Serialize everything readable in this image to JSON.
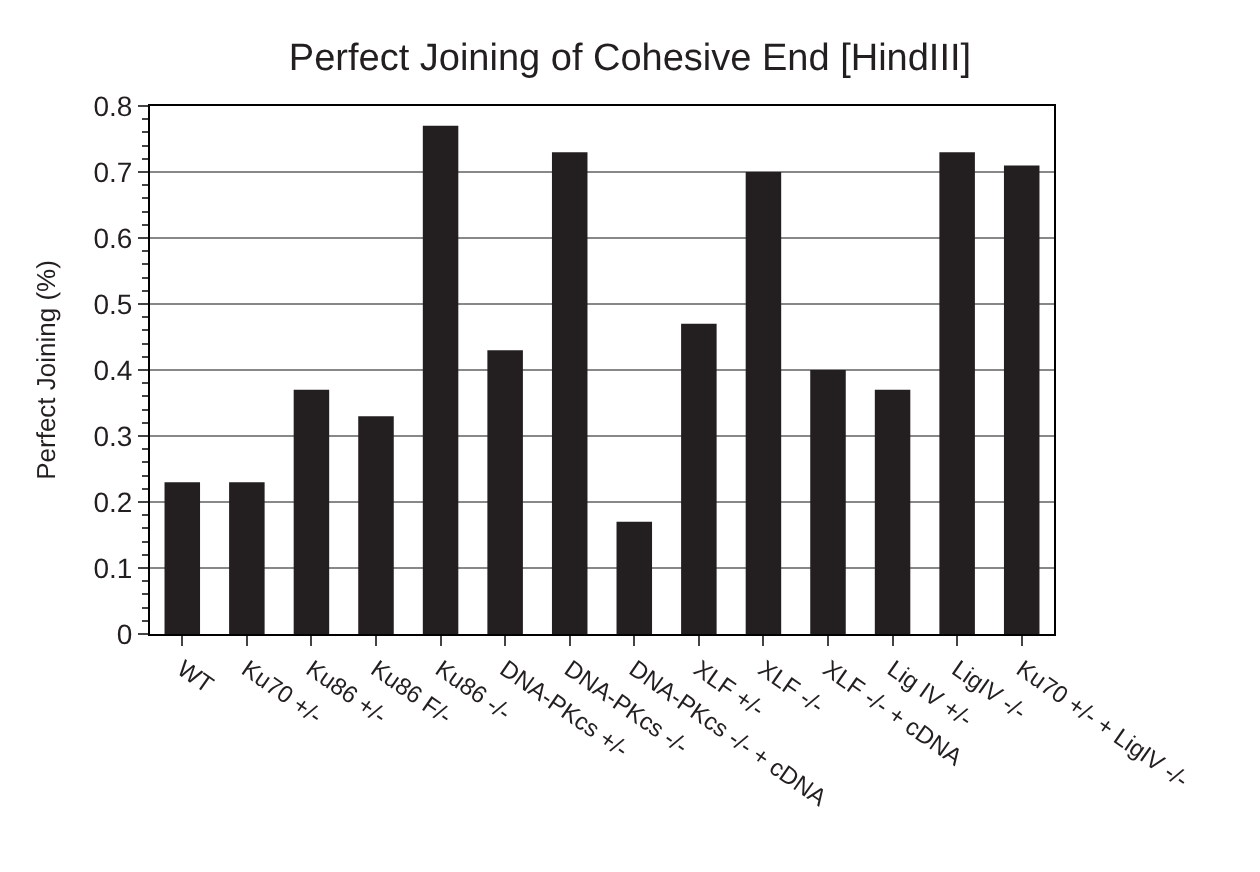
{
  "chart_data": {
    "type": "bar",
    "title": "Perfect Joining of Cohesive End [HindIII]",
    "ylabel": "Perfect Joining (%)",
    "categories": [
      "WT",
      "Ku70 +/-",
      "Ku86 +/-",
      "Ku86 F/-",
      "Ku86 -/-",
      "DNA-PKcs +/-",
      "DNA-PKcs -/-",
      "DNA-PKcs -/- + cDNA",
      "XLF +/-",
      "XLF -/-",
      "XLF -/- + cDNA",
      "Lig IV +/-",
      "LigIV -/-",
      "Ku70 +/- + LigIV -/-"
    ],
    "values": [
      0.23,
      0.23,
      0.37,
      0.33,
      0.77,
      0.43,
      0.73,
      0.17,
      0.47,
      0.7,
      0.4,
      0.37,
      0.73,
      0.71
    ],
    "color": "#231f20",
    "ylim": [
      0,
      0.8
    ],
    "yticks": [
      0,
      0.1,
      0.2,
      0.3,
      0.4,
      0.5,
      0.6,
      0.7,
      0.8
    ],
    "grid": "y"
  }
}
